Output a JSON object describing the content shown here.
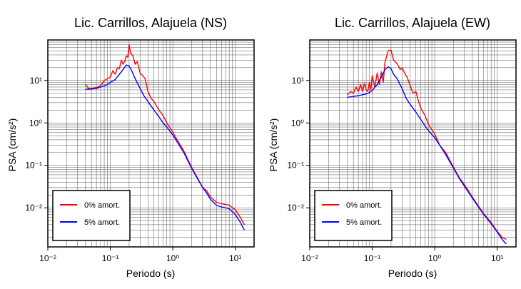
{
  "chart_data": [
    {
      "type": "line",
      "title": "Lic. Carrillos, Alajuela (NS)",
      "xlabel": "Periodo (s)",
      "ylabel": "PSA (cm/s²)",
      "xscale": "log",
      "yscale": "log",
      "xlim": [
        0.01,
        20
      ],
      "ylim": [
        0.0012,
        90
      ],
      "grid": true,
      "legend_position": "bottom-left",
      "x_tick_labels": [
        "10⁻²",
        "10⁻¹",
        "10⁰",
        "10¹"
      ],
      "y_tick_labels": [
        "10⁻²",
        "10⁻¹",
        "10⁰",
        "10¹"
      ],
      "series": [
        {
          "name": "0% amort.",
          "color": "#ff0000",
          "x": [
            0.04,
            0.045,
            0.05,
            0.06,
            0.07,
            0.08,
            0.09,
            0.1,
            0.11,
            0.12,
            0.13,
            0.14,
            0.15,
            0.16,
            0.17,
            0.18,
            0.19,
            0.2,
            0.21,
            0.23,
            0.25,
            0.27,
            0.3,
            0.33,
            0.36,
            0.4,
            0.45,
            0.5,
            0.6,
            0.7,
            0.8,
            1.0,
            1.2,
            1.5,
            2.0,
            2.5,
            3.0,
            3.5,
            4.0,
            5.0,
            6.0,
            7.0,
            8.0,
            10.0,
            12.0,
            14.0
          ],
          "y": [
            8,
            6.5,
            6.5,
            6.8,
            7.5,
            10,
            11,
            12,
            17,
            14,
            20,
            19,
            30,
            24,
            28,
            38,
            35,
            70,
            45,
            38,
            24,
            28,
            15,
            13,
            11,
            5.5,
            3.8,
            3.2,
            2.0,
            1.5,
            1.0,
            0.6,
            0.38,
            0.22,
            0.09,
            0.05,
            0.03,
            0.025,
            0.018,
            0.0135,
            0.0125,
            0.012,
            0.0115,
            0.009,
            0.006,
            0.004
          ]
        },
        {
          "name": "5% amort.",
          "color": "#0000ff",
          "x": [
            0.04,
            0.05,
            0.06,
            0.07,
            0.08,
            0.09,
            0.1,
            0.12,
            0.14,
            0.16,
            0.18,
            0.2,
            0.22,
            0.25,
            0.3,
            0.35,
            0.4,
            0.5,
            0.6,
            0.7,
            0.8,
            1.0,
            1.2,
            1.5,
            2.0,
            2.5,
            3.0,
            3.5,
            4.0,
            5.0,
            6.0,
            7.0,
            8.0,
            10.0,
            12.0,
            14.0
          ],
          "y": [
            6.2,
            6.3,
            6.5,
            7.0,
            7.5,
            8,
            9,
            10.5,
            14,
            18,
            23,
            22,
            17,
            11,
            6.5,
            4.2,
            3.2,
            2.0,
            1.4,
            1.0,
            0.8,
            0.52,
            0.34,
            0.2,
            0.085,
            0.048,
            0.03,
            0.022,
            0.016,
            0.0115,
            0.0105,
            0.01,
            0.0095,
            0.007,
            0.0046,
            0.003
          ]
        }
      ]
    },
    {
      "type": "line",
      "title": "Lic. Carrillos, Alajuela (EW)",
      "xlabel": "Periodo (s)",
      "ylabel": "PSA (cm/s²)",
      "xscale": "log",
      "yscale": "log",
      "xlim": [
        0.01,
        20
      ],
      "ylim": [
        0.0012,
        90
      ],
      "grid": true,
      "legend_position": "bottom-left",
      "x_tick_labels": [
        "10⁻²",
        "10⁻¹",
        "10⁰",
        "10¹"
      ],
      "y_tick_labels": [
        "10⁻²",
        "10⁻¹",
        "10⁰",
        "10¹"
      ],
      "series": [
        {
          "name": "0% amort.",
          "color": "#ff0000",
          "x": [
            0.04,
            0.045,
            0.05,
            0.055,
            0.06,
            0.065,
            0.07,
            0.075,
            0.08,
            0.085,
            0.09,
            0.095,
            0.1,
            0.11,
            0.12,
            0.13,
            0.14,
            0.15,
            0.16,
            0.18,
            0.2,
            0.22,
            0.25,
            0.28,
            0.3,
            0.33,
            0.36,
            0.4,
            0.45,
            0.5,
            0.55,
            0.6,
            0.7,
            0.8,
            1.0,
            1.2,
            1.5,
            2.0,
            2.5,
            3.0,
            4.0,
            5.0,
            6.0,
            8.0,
            10.0,
            12.0,
            14.0
          ],
          "y": [
            4.5,
            5.5,
            5.0,
            7.0,
            5.5,
            8.0,
            5.5,
            8.5,
            6.0,
            5.5,
            9.0,
            6.0,
            13.0,
            7.0,
            15.0,
            8.0,
            16.0,
            9.0,
            27.0,
            50.0,
            52.0,
            30.0,
            25.0,
            18.0,
            20.0,
            15.0,
            12.0,
            8.0,
            5.0,
            5.5,
            3.2,
            2.2,
            1.5,
            0.9,
            0.55,
            0.3,
            0.2,
            0.09,
            0.05,
            0.035,
            0.018,
            0.011,
            0.0075,
            0.0045,
            0.0028,
            0.002,
            0.0018
          ]
        },
        {
          "name": "5% amort.",
          "color": "#0000ff",
          "x": [
            0.04,
            0.05,
            0.06,
            0.07,
            0.08,
            0.09,
            0.1,
            0.12,
            0.14,
            0.16,
            0.18,
            0.2,
            0.22,
            0.25,
            0.3,
            0.35,
            0.4,
            0.5,
            0.6,
            0.7,
            0.8,
            1.0,
            1.2,
            1.5,
            2.0,
            2.5,
            3.0,
            4.0,
            5.0,
            6.0,
            8.0,
            10.0,
            12.0,
            14.0
          ],
          "y": [
            4.0,
            4.2,
            4.4,
            4.6,
            4.8,
            5.2,
            5.8,
            8.0,
            12.0,
            18.0,
            21.0,
            19.0,
            14.0,
            11.0,
            6.5,
            3.8,
            2.8,
            1.8,
            1.2,
            0.85,
            0.65,
            0.45,
            0.3,
            0.18,
            0.085,
            0.048,
            0.032,
            0.017,
            0.0105,
            0.0072,
            0.0042,
            0.0027,
            0.0018,
            0.0014
          ]
        }
      ]
    }
  ]
}
